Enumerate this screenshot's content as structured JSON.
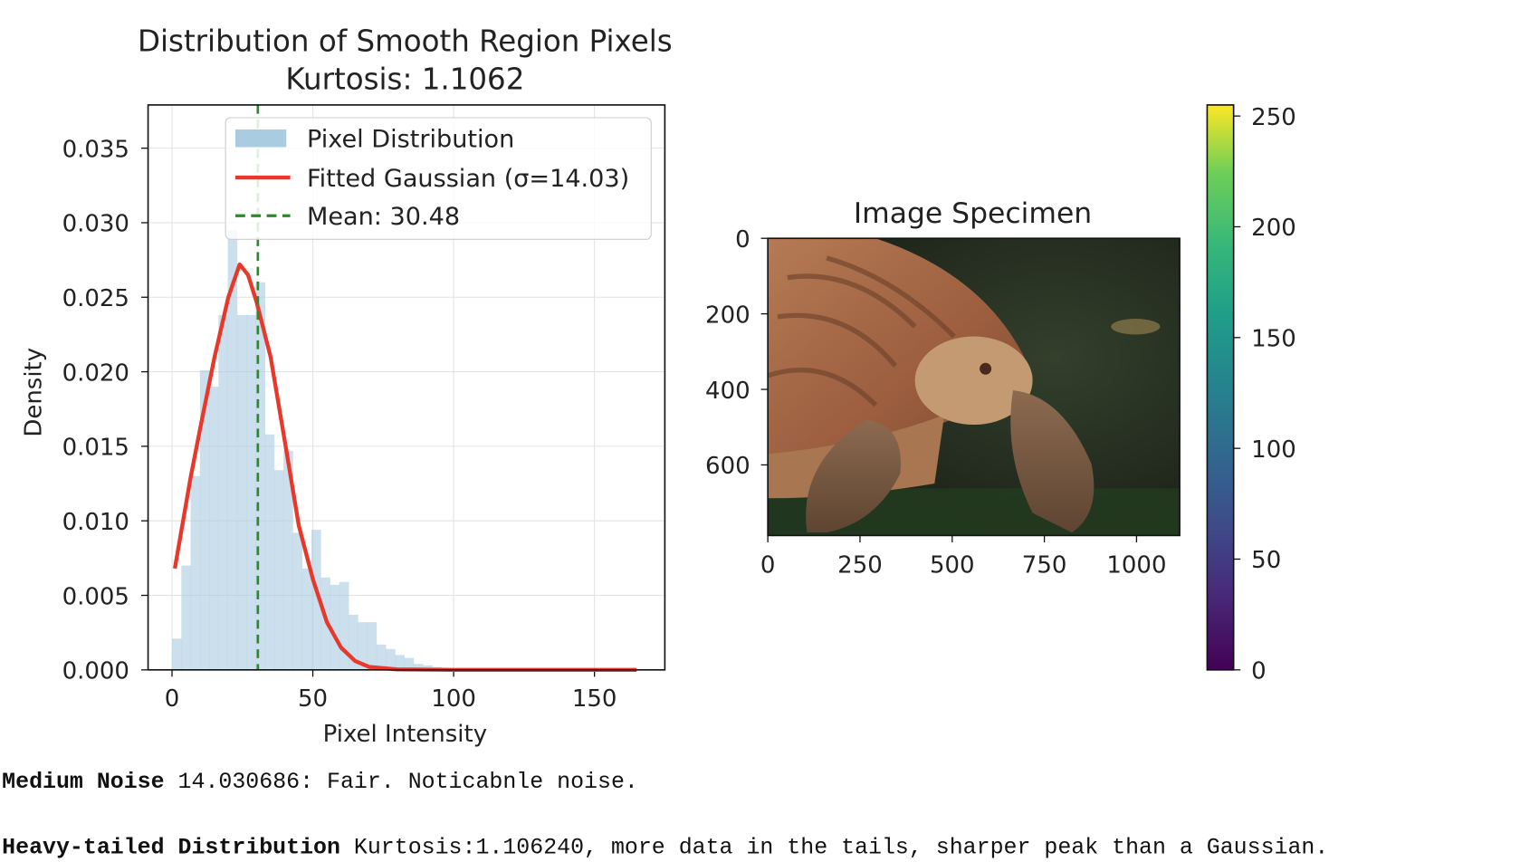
{
  "chart_data": [
    {
      "type": "bar",
      "title": "Distribution of Smooth Region Pixels",
      "subtitle": "Kurtosis: 1.1062",
      "xlabel": "Pixel Intensity",
      "ylabel": "Density",
      "xlim": [
        -8.5,
        175
      ],
      "ylim": [
        0,
        0.0379
      ],
      "xticks": [
        0,
        50,
        100,
        150
      ],
      "yticks": [
        0.0,
        0.005,
        0.01,
        0.015,
        0.02,
        0.025,
        0.03,
        0.035
      ],
      "ytick_labels": [
        "0.000",
        "0.005",
        "0.010",
        "0.015",
        "0.020",
        "0.025",
        "0.030",
        "0.035"
      ],
      "grid": true,
      "legend_placement": "top-center",
      "histogram": {
        "name": "Pixel Distribution",
        "color": "#a9cce0",
        "bin_width": 3.3,
        "bin_start": 0,
        "values": [
          0.0021,
          0.007,
          0.013,
          0.0201,
          0.019,
          0.0238,
          0.0295,
          0.0238,
          0.0238,
          0.026,
          0.0158,
          0.0134,
          0.0147,
          0.0092,
          0.0068,
          0.0094,
          0.0062,
          0.0057,
          0.0059,
          0.0037,
          0.0032,
          0.0032,
          0.0017,
          0.0014,
          0.001,
          0.0008,
          0.0004,
          0.0003,
          0.0002,
          0.0001,
          6e-05,
          5e-05,
          4e-05,
          3e-05,
          3e-05,
          2e-05,
          2e-05,
          2e-05,
          1e-05,
          1e-05,
          1e-05,
          1e-05,
          1e-05,
          1e-05,
          1e-05,
          1e-05,
          1e-05,
          1e-05,
          1e-05,
          1e-05
        ]
      },
      "gaussian": {
        "name": "Fitted Gaussian (σ=14.03)",
        "color": "#e8382b",
        "x": [
          1,
          6.5,
          10,
          15,
          20,
          24,
          27,
          30,
          35,
          40,
          45,
          50,
          55,
          60,
          65,
          70,
          80,
          100,
          165
        ],
        "y": [
          0.0068,
          0.0128,
          0.0162,
          0.0209,
          0.025,
          0.0272,
          0.0265,
          0.0247,
          0.021,
          0.0154,
          0.0097,
          0.0061,
          0.0032,
          0.0015,
          0.0006,
          0.0002,
          3e-05,
          0,
          0
        ]
      },
      "mean_line": {
        "name": "Mean: 30.48",
        "x": 30.48,
        "color": "#2a8a2a"
      }
    },
    {
      "type": "image",
      "title": "Image Specimen",
      "xlim": [
        0,
        1117
      ],
      "ylim": [
        787,
        0
      ],
      "xticks": [
        0,
        250,
        500,
        750,
        1000
      ],
      "yticks": [
        0,
        200,
        400,
        600
      ],
      "colorbar": {
        "colormap": "viridis",
        "range": [
          0,
          255
        ],
        "ticks": [
          0,
          50,
          100,
          150,
          200,
          250
        ]
      }
    }
  ],
  "notes": [
    {
      "bold": "Medium Noise",
      "text": " 14.030686: Fair. Noticabnle noise."
    },
    {
      "bold": "Heavy-tailed Distribution",
      "text": " Kurtosis:1.106240, more data in the tails, sharper peak than a Gaussian."
    }
  ]
}
